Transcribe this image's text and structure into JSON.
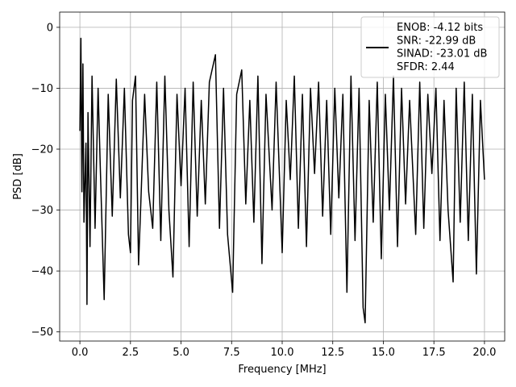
{
  "chart_data": {
    "type": "line",
    "title": "",
    "xlabel": "Frequency [MHz]",
    "ylabel": "PSD [dB]",
    "xlim": [
      -1.0,
      21.0
    ],
    "ylim": [
      -51.5,
      2.5
    ],
    "x_ticks": [
      0.0,
      2.5,
      5.0,
      7.5,
      10.0,
      12.5,
      15.0,
      17.5,
      20.0
    ],
    "x_tick_labels": [
      "0.0",
      "2.5",
      "5.0",
      "7.5",
      "10.0",
      "12.5",
      "15.0",
      "17.5",
      "20.0"
    ],
    "y_ticks": [
      0,
      -10,
      -20,
      -30,
      -40,
      -50
    ],
    "y_tick_labels": [
      "0",
      "−10",
      "−20",
      "−30",
      "−40",
      "−50"
    ],
    "grid": true,
    "legend_position": "top-right",
    "series": [
      {
        "name": "ENOB: -4.12 bits\nSNR: -22.99 dB\nSINAD: -23.01 dB\nSFDR: 2.44",
        "color": "#000000",
        "x": [
          0.0,
          0.05,
          0.1,
          0.15,
          0.2,
          0.3,
          0.35,
          0.4,
          0.5,
          0.6,
          0.75,
          0.9,
          1.0,
          1.2,
          1.4,
          1.6,
          1.8,
          2.0,
          2.2,
          2.4,
          2.5,
          2.6,
          2.75,
          2.9,
          3.0,
          3.2,
          3.4,
          3.6,
          3.8,
          4.0,
          4.2,
          4.4,
          4.6,
          4.8,
          5.0,
          5.2,
          5.4,
          5.6,
          5.8,
          6.0,
          6.2,
          6.4,
          6.7,
          6.9,
          7.1,
          7.3,
          7.55,
          7.75,
          8.0,
          8.2,
          8.4,
          8.6,
          8.8,
          9.0,
          9.2,
          9.5,
          9.7,
          10.0,
          10.2,
          10.4,
          10.6,
          10.8,
          11.0,
          11.2,
          11.4,
          11.6,
          11.8,
          12.0,
          12.2,
          12.4,
          12.6,
          12.8,
          13.0,
          13.2,
          13.4,
          13.6,
          13.8,
          14.0,
          14.1,
          14.3,
          14.5,
          14.7,
          14.9,
          15.1,
          15.3,
          15.5,
          15.7,
          15.9,
          16.1,
          16.3,
          16.6,
          16.8,
          17.0,
          17.2,
          17.4,
          17.6,
          17.8,
          18.0,
          18.2,
          18.45,
          18.6,
          18.8,
          19.0,
          19.2,
          19.4,
          19.6,
          19.8,
          20.0
        ],
        "y": [
          -17,
          -1.8,
          -27,
          -6,
          -32,
          -19,
          -45.5,
          -14,
          -36,
          -8,
          -33,
          -10,
          -22,
          -44.7,
          -11,
          -31,
          -8.5,
          -28,
          -10,
          -34,
          -37,
          -12,
          -8,
          -39,
          -30,
          -11,
          -27,
          -33,
          -9,
          -35,
          -8,
          -30,
          -41,
          -11,
          -26,
          -10,
          -36,
          -9,
          -31,
          -12,
          -29,
          -9,
          -4.5,
          -33,
          -10,
          -34,
          -43.5,
          -11,
          -7,
          -29,
          -12,
          -32,
          -8,
          -38.8,
          -11,
          -30,
          -9,
          -37,
          -12,
          -25,
          -8,
          -33,
          -11,
          -36,
          -10,
          -24,
          -9,
          -31,
          -12,
          -34,
          -10,
          -28,
          -11,
          -43.5,
          -8,
          -35,
          -10,
          -46,
          -48.5,
          -12,
          -32,
          -9,
          -38,
          -11,
          -30,
          -8,
          -36,
          -10,
          -29,
          -12,
          -34,
          -9,
          -33,
          -11,
          -24,
          -10,
          -35,
          -12,
          -30,
          -41.8,
          -10,
          -32,
          -9,
          -35,
          -11,
          -40.5,
          -12,
          -25
        ]
      }
    ]
  }
}
